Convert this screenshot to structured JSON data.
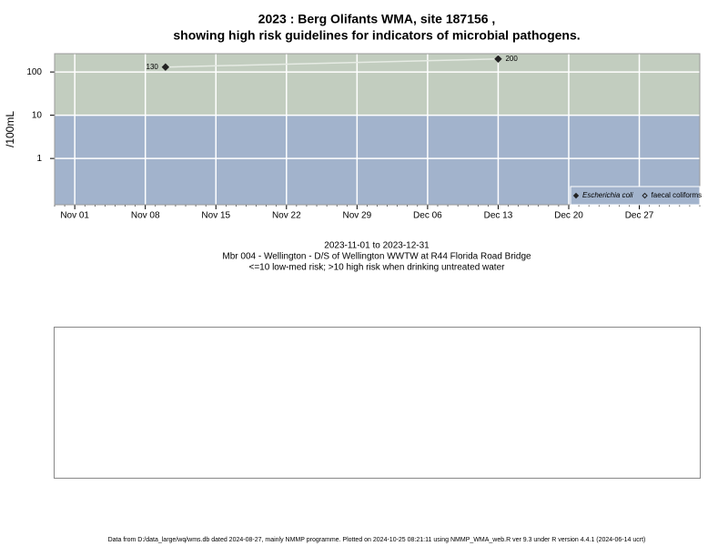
{
  "chart_data": {
    "type": "scatter",
    "title": "2023 : Berg Olifants WMA, site 187156 ,",
    "subtitle": "showing high risk guidelines for indicators of microbial pathogens.",
    "ylabel": "/100mL",
    "notes": [
      "2023-11-01 to 2023-12-31",
      "Mbr 004 - Wellington - D/S of Wellington WWTW at R44 Florida Road Bridge",
      "<=10 low-med risk; >10 high risk when drinking untreated water"
    ],
    "footer": "Data from D:/data_large/wq/wms.db dated 2024-08-27, mainly NMMP programme. Plotted on 2024-10-25 08:21:11 using NMMP_WMA_web.R ver 9.3 under R version 4.4.1 (2024-06-14 ucrt)",
    "x": [
      "2023-11-10",
      "2023-12-13"
    ],
    "series": [
      {
        "name": "Escherichia coli",
        "color": "#222222",
        "marker": "filled-diamond",
        "values": [
          130,
          200
        ]
      },
      {
        "name": "faecal coliforms",
        "color": "#222222",
        "marker": "open-diamond",
        "values": [
          null,
          null
        ]
      }
    ],
    "xlim": [
      "2023-10-30",
      "2024-01-02"
    ],
    "xticks": [
      {
        "value": "2023-11-01",
        "label": "Nov 01"
      },
      {
        "value": "2023-11-08",
        "label": "Nov 08"
      },
      {
        "value": "2023-11-15",
        "label": "Nov 15"
      },
      {
        "value": "2023-11-22",
        "label": "Nov 22"
      },
      {
        "value": "2023-11-29",
        "label": "Nov 29"
      },
      {
        "value": "2023-12-06",
        "label": "Dec 06"
      },
      {
        "value": "2023-12-13",
        "label": "Dec 13"
      },
      {
        "value": "2023-12-20",
        "label": "Dec 20"
      },
      {
        "value": "2023-12-27",
        "label": "Dec 27"
      }
    ],
    "ylim": [
      0.085,
      265
    ],
    "yticks": [
      1,
      10,
      100
    ],
    "log_y": true,
    "grid": true,
    "threshold": 10,
    "high_risk_color": "#c2cdbf",
    "low_risk_color": "#a2b3cc",
    "legend": "bottom-right"
  }
}
